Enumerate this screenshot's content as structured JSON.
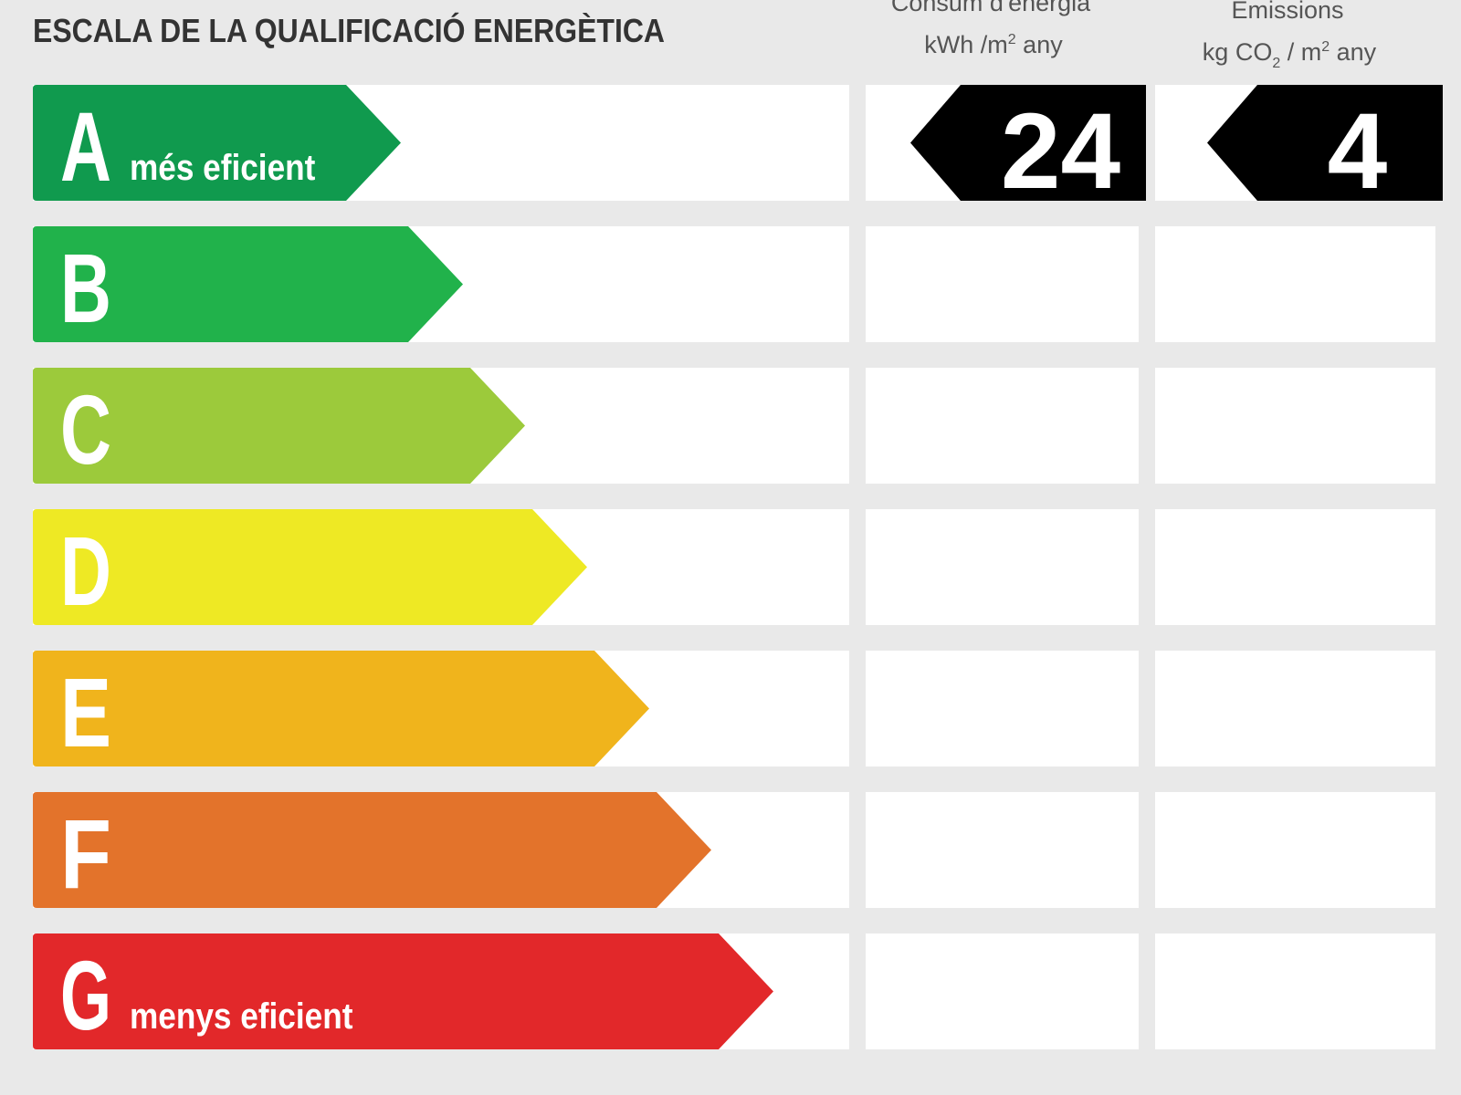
{
  "title": "ESCALA DE LA QUALIFICACIÓ ENERGÈTICA",
  "columns": {
    "energy": {
      "heading": "Consum d'energia",
      "unit": {
        "pre": "kWh /m",
        "sup": "2",
        "post": " any"
      }
    },
    "emissions": {
      "heading": "Emissions",
      "unit": {
        "pre": "kg CO",
        "sub": "2",
        "mid": " / m",
        "sup": "2",
        "post": " any"
      }
    }
  },
  "rows": [
    {
      "letter": "A",
      "label": "més eficient",
      "color": "#109a4e"
    },
    {
      "letter": "B",
      "color": "#21b24b"
    },
    {
      "letter": "C",
      "color": "#9cca3b"
    },
    {
      "letter": "D",
      "color": "#eee924"
    },
    {
      "letter": "E",
      "color": "#f0b41c"
    },
    {
      "letter": "F",
      "color": "#e3732b"
    },
    {
      "letter": "G",
      "label": "menys eficient",
      "color": "#e2282a"
    }
  ],
  "rating": {
    "row": 0,
    "energy": 24,
    "emissions": 4
  }
}
